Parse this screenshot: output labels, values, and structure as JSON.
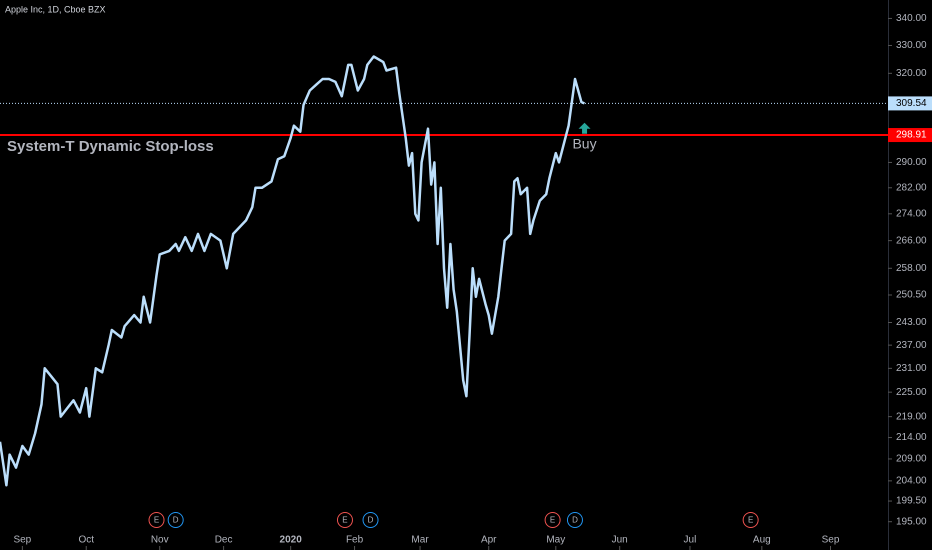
{
  "chart_data": {
    "type": "line",
    "log_scale": true,
    "xlim": [
      0,
      278
    ],
    "ylim": [
      189,
      347
    ],
    "series": [
      {
        "name": "Apple Inc, 1D, Cboe BZX",
        "color": "#bbdefb",
        "x": [
          0,
          2,
          3,
          5,
          7,
          9,
          11,
          13,
          14,
          16,
          18,
          19,
          21,
          23,
          25,
          27,
          28,
          30,
          32,
          34,
          35,
          38,
          39,
          42,
          44,
          45,
          47,
          49,
          50,
          53,
          55,
          56,
          58,
          60,
          62,
          64,
          66,
          69,
          71,
          73,
          75,
          77,
          79,
          80,
          82,
          85,
          87,
          89,
          91,
          92,
          94,
          95,
          97,
          99,
          101,
          103,
          105,
          107,
          109,
          110,
          112,
          114,
          115,
          117,
          120,
          121,
          124,
          125,
          127,
          128,
          129,
          130,
          131,
          132,
          134,
          135,
          136,
          137,
          138,
          139,
          140,
          141,
          142,
          143,
          145,
          146,
          147,
          148,
          149,
          150,
          152,
          153,
          154,
          156,
          157,
          158,
          160,
          161,
          162,
          163,
          165,
          166,
          167,
          169,
          171,
          172,
          174,
          175,
          177,
          178,
          180,
          182,
          183
        ],
        "values": [
          213,
          203,
          210,
          207,
          212,
          210,
          215,
          222,
          231,
          229,
          227,
          219,
          221,
          223,
          220,
          226,
          219,
          231,
          230,
          237,
          241,
          239,
          242,
          245,
          243,
          250,
          243,
          256,
          262,
          263,
          265,
          263,
          267,
          263,
          268,
          263,
          268,
          266,
          258,
          268,
          270,
          272,
          276,
          282,
          282,
          284,
          291,
          292,
          298,
          302,
          300,
          309,
          314,
          316,
          318,
          318,
          317,
          312,
          323,
          323,
          314,
          318,
          323,
          326,
          324,
          321,
          322,
          313,
          298,
          289,
          293,
          274,
          272,
          290,
          301,
          283,
          290,
          265,
          282,
          258,
          247,
          265,
          252,
          246,
          228,
          224,
          240,
          258,
          250,
          255,
          248,
          245,
          240,
          250,
          258,
          266,
          268,
          284,
          285,
          280,
          282,
          268,
          272,
          278,
          280,
          285,
          293,
          290,
          298,
          302,
          318,
          310,
          309.54
        ]
      }
    ],
    "yticks": [
      {
        "value": 340,
        "label": "340.00"
      },
      {
        "value": 330,
        "label": "330.00"
      },
      {
        "value": 320,
        "label": "320.00"
      },
      {
        "value": 290,
        "label": "290.00"
      },
      {
        "value": 282,
        "label": "282.00"
      },
      {
        "value": 274,
        "label": "274.00"
      },
      {
        "value": 266,
        "label": "266.00"
      },
      {
        "value": 258,
        "label": "258.00"
      },
      {
        "value": 250.5,
        "label": "250.50"
      },
      {
        "value": 243,
        "label": "243.00"
      },
      {
        "value": 237,
        "label": "237.00"
      },
      {
        "value": 231,
        "label": "231.00"
      },
      {
        "value": 225,
        "label": "225.00"
      },
      {
        "value": 219,
        "label": "219.00"
      },
      {
        "value": 214,
        "label": "214.00"
      },
      {
        "value": 209,
        "label": "209.00"
      },
      {
        "value": 204,
        "label": "204.00"
      },
      {
        "value": 199.5,
        "label": "199.50"
      },
      {
        "value": 195,
        "label": "195.00"
      }
    ],
    "xticks": [
      {
        "value": 7,
        "label": "Sep"
      },
      {
        "value": 27,
        "label": "Oct"
      },
      {
        "value": 50,
        "label": "Nov"
      },
      {
        "value": 70,
        "label": "Dec"
      },
      {
        "value": 91,
        "label": "2020"
      },
      {
        "value": 111,
        "label": "Feb"
      },
      {
        "value": 131.5,
        "label": "Mar"
      },
      {
        "value": 153,
        "label": "Apr"
      },
      {
        "value": 174,
        "label": "May"
      },
      {
        "value": 194,
        "label": "Jun"
      },
      {
        "value": 216,
        "label": "Jul"
      },
      {
        "value": 238.5,
        "label": "Aug"
      },
      {
        "value": 260,
        "label": "Sep"
      }
    ],
    "last_price": {
      "value": 309.54,
      "color": "#bbdefb"
    },
    "stop_loss": {
      "label": "System-T Dynamic Stop-loss",
      "value": 298.91,
      "color": "#ff0000"
    },
    "signal": {
      "label": "Buy",
      "x": 183,
      "value": 303,
      "color": "#26a69a"
    },
    "events": [
      {
        "label": "E",
        "x": 49,
        "color": "#ef5350"
      },
      {
        "label": "D",
        "x": 55,
        "color": "#2196f3"
      },
      {
        "label": "E",
        "x": 108,
        "color": "#ef5350"
      },
      {
        "label": "D",
        "x": 116,
        "color": "#2196f3"
      },
      {
        "label": "E",
        "x": 173,
        "color": "#ef5350"
      },
      {
        "label": "D",
        "x": 180,
        "color": "#2196f3"
      },
      {
        "label": "E",
        "x": 235,
        "color": "#ef5350"
      }
    ]
  }
}
